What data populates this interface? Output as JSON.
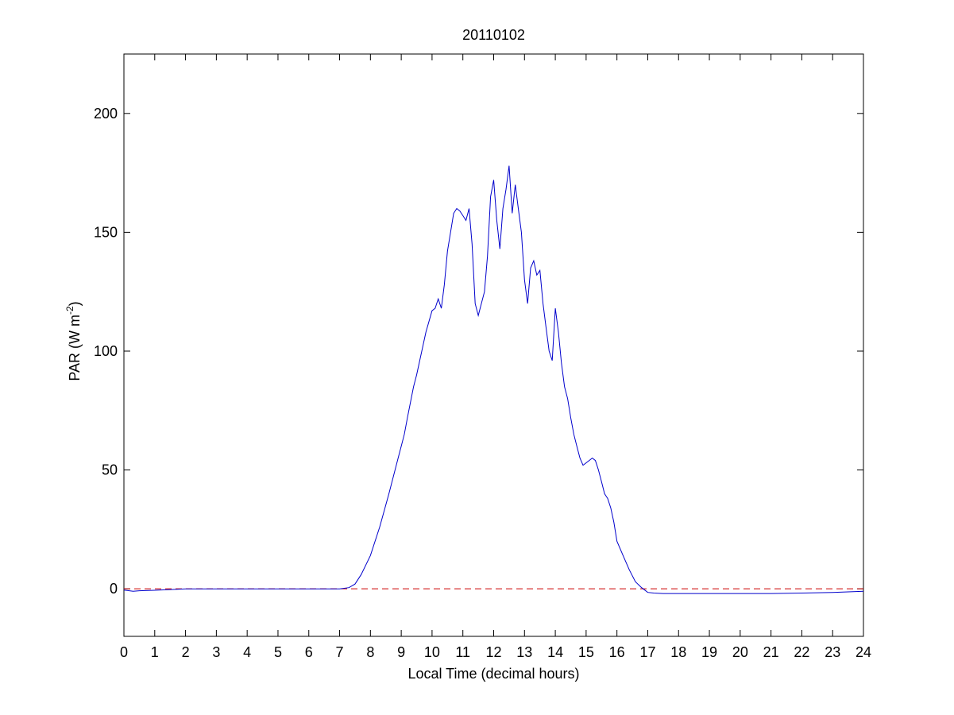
{
  "chart_data": {
    "type": "line",
    "title": "20110102",
    "xlabel": "Local Time (decimal hours)",
    "ylabel_main": "PAR (W m",
    "ylabel_sup": "-2",
    "ylabel_close": ")",
    "xlim": [
      0,
      24
    ],
    "ylim": [
      -20,
      225
    ],
    "xticks": [
      0,
      1,
      2,
      3,
      4,
      5,
      6,
      7,
      8,
      9,
      10,
      11,
      12,
      13,
      14,
      15,
      16,
      17,
      18,
      19,
      20,
      21,
      22,
      23,
      24
    ],
    "yticks": [
      0,
      50,
      100,
      150,
      200
    ],
    "grid": false,
    "colors": {
      "series": "#0000cc",
      "zero_line": "#cc0000"
    },
    "series": [
      {
        "x": [
          0,
          0.3,
          0.5,
          1,
          1.5,
          2,
          3,
          4,
          5,
          6,
          7,
          7.3,
          7.5,
          7.7,
          8,
          8.3,
          8.6,
          8.9,
          9,
          9.1,
          9.2,
          9.4,
          9.5,
          9.6,
          9.8,
          10,
          10.1,
          10.2,
          10.3,
          10.4,
          10.5,
          10.6,
          10.7,
          10.8,
          10.9,
          11,
          11.1,
          11.2,
          11.3,
          11.4,
          11.5,
          11.6,
          11.7,
          11.8,
          11.9,
          12,
          12.1,
          12.2,
          12.3,
          12.4,
          12.5,
          12.6,
          12.7,
          12.8,
          12.9,
          13,
          13.1,
          13.2,
          13.3,
          13.4,
          13.5,
          13.6,
          13.7,
          13.8,
          13.9,
          14,
          14.1,
          14.2,
          14.3,
          14.4,
          14.5,
          14.6,
          14.7,
          14.8,
          14.9,
          15,
          15.1,
          15.2,
          15.3,
          15.4,
          15.5,
          15.6,
          15.7,
          15.8,
          15.9,
          16,
          16.2,
          16.4,
          16.6,
          16.8,
          17,
          17.2,
          17.5,
          18,
          19,
          20,
          21,
          22,
          23,
          24
        ],
        "y": [
          -0.5,
          -1,
          -0.8,
          -0.6,
          -0.3,
          0,
          0,
          0,
          0,
          0,
          0,
          0.5,
          2,
          6,
          14,
          26,
          40,
          55,
          60,
          65,
          72,
          85,
          90,
          96,
          108,
          117,
          118,
          122,
          118,
          128,
          142,
          150,
          158,
          160,
          159,
          157,
          155,
          160,
          145,
          120,
          115,
          120,
          125,
          140,
          165,
          172,
          155,
          143,
          160,
          168,
          178,
          158,
          170,
          160,
          150,
          130,
          120,
          135,
          138,
          132,
          134,
          120,
          110,
          100,
          96,
          118,
          108,
          95,
          85,
          80,
          72,
          65,
          60,
          55,
          52,
          53,
          54,
          55,
          54,
          50,
          45,
          40,
          38,
          34,
          28,
          20,
          14,
          8,
          3,
          0.5,
          -1.5,
          -1.8,
          -2,
          -2,
          -2,
          -2,
          -2,
          -1.8,
          -1.5,
          -1
        ]
      }
    ]
  }
}
